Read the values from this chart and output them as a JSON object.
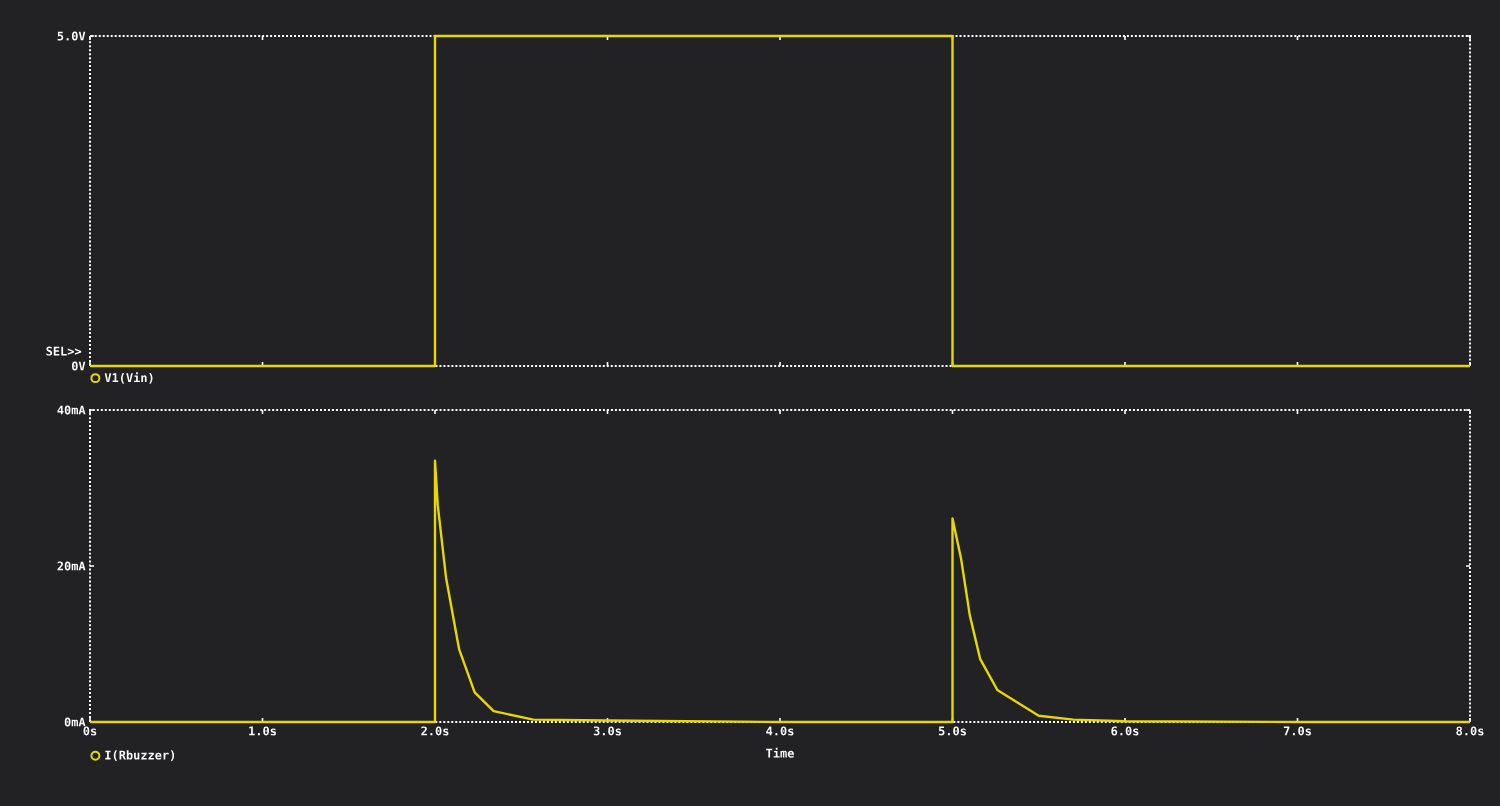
{
  "chart_data": [
    {
      "type": "line",
      "annotations": [
        "SEL>>"
      ],
      "xlim": [
        0,
        8
      ],
      "ylim": [
        0,
        5
      ],
      "tick_labels": "y",
      "legend": "bottom left",
      "xticks": [
        {
          "value": 0,
          "label": null
        },
        {
          "value": 1,
          "label": null
        },
        {
          "value": 2,
          "label": null
        },
        {
          "value": 3,
          "label": null
        },
        {
          "value": 4,
          "label": null
        },
        {
          "value": 5,
          "label": null
        },
        {
          "value": 6,
          "label": null
        },
        {
          "value": 7,
          "label": null
        },
        {
          "value": 8,
          "label": null
        }
      ],
      "yticks": [
        {
          "value": 0,
          "label": "0V"
        },
        {
          "value": 5,
          "label": "5.0V"
        }
      ],
      "series": [
        {
          "name": "V1(Vin)",
          "color": "#e8d800",
          "x": [
            0,
            2,
            2,
            5,
            5,
            8
          ],
          "values": [
            0,
            0,
            5,
            5,
            0,
            0
          ]
        }
      ]
    },
    {
      "type": "line",
      "xlabel": "Time",
      "xlim": [
        0,
        8
      ],
      "ylim": [
        0,
        40
      ],
      "legend": "bottom left",
      "xticks": [
        {
          "value": 0,
          "label": "0s"
        },
        {
          "value": 1,
          "label": "1.0s"
        },
        {
          "value": 2,
          "label": "2.0s"
        },
        {
          "value": 3,
          "label": "3.0s"
        },
        {
          "value": 4,
          "label": "4.0s"
        },
        {
          "value": 5,
          "label": "5.0s"
        },
        {
          "value": 6,
          "label": "6.0s"
        },
        {
          "value": 7,
          "label": "7.0s"
        },
        {
          "value": 8,
          "label": "8.0s"
        }
      ],
      "yticks": [
        {
          "value": 0,
          "label": "0mA"
        },
        {
          "value": 20,
          "label": "20mA"
        },
        {
          "value": 40,
          "label": "40mA"
        }
      ],
      "series": [
        {
          "name": "I(Rbuzzer)",
          "color": "#e8d800",
          "x": [
            0,
            2,
            2,
            2.016,
            2.064,
            2.14,
            2.23,
            2.34,
            2.57,
            3.0,
            4.0,
            5.0,
            5.0,
            5.05,
            5.1,
            5.16,
            5.26,
            5.5,
            5.7,
            6.0,
            7.0,
            8.0
          ],
          "values": [
            0,
            0,
            33.5,
            27.8,
            18.5,
            9.3,
            3.8,
            1.4,
            0.3,
            0.2,
            0,
            0,
            26.1,
            20.9,
            13.7,
            8.1,
            4.1,
            0.8,
            0.3,
            0.1,
            0,
            0
          ]
        }
      ]
    }
  ]
}
